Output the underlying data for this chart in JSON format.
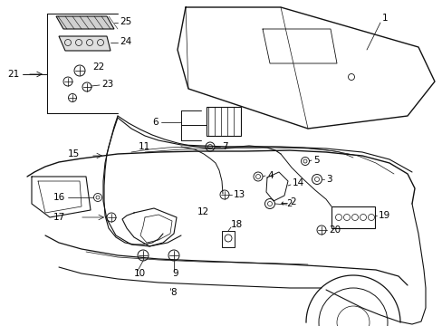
{
  "background_color": "#ffffff",
  "line_color": "#1a1a1a",
  "text_color": "#000000",
  "figsize": [
    4.89,
    3.6
  ],
  "dpi": 100
}
